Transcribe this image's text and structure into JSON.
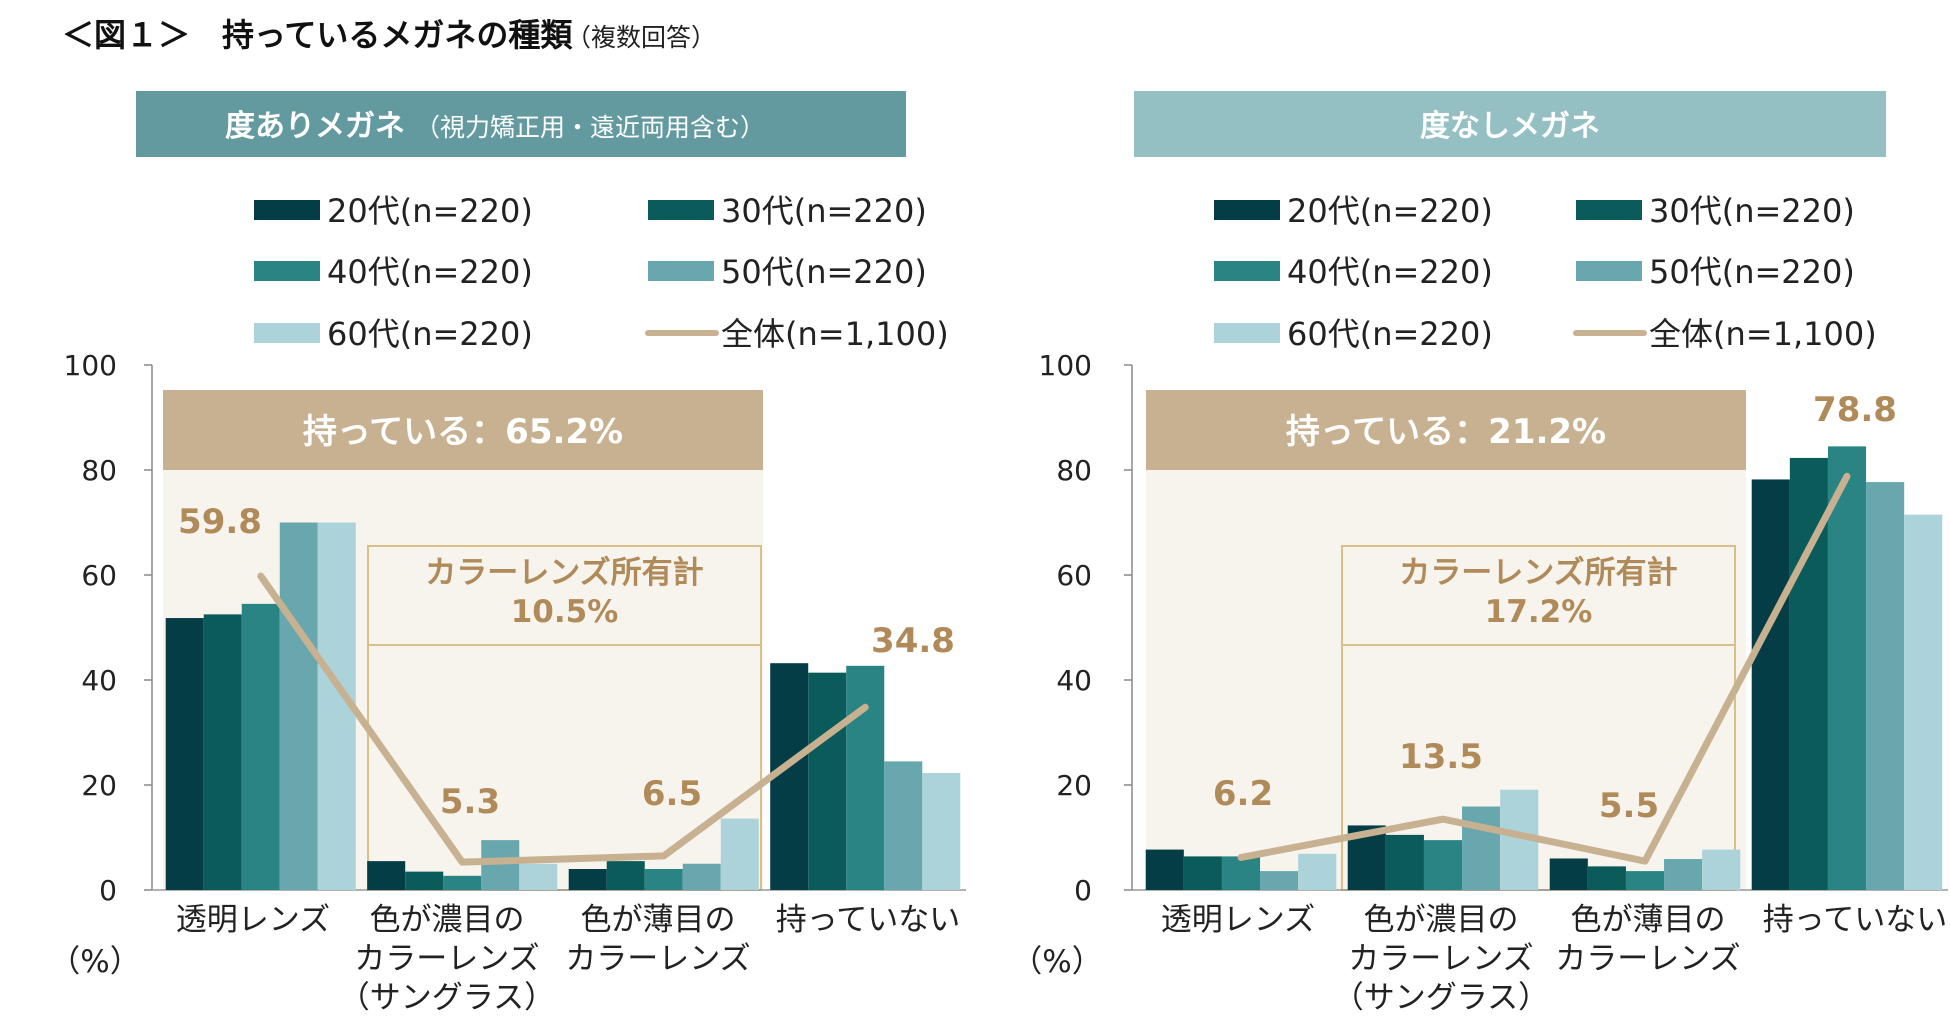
{
  "figure": {
    "title": "＜図１＞　持っているメガネの種類",
    "subtitle": "（複数回答）"
  },
  "colors": {
    "c20": "#053d46",
    "c30": "#0c5b5b",
    "c40": "#2a8484",
    "c50": "#67a7ad",
    "c60": "#acd3da",
    "total": "#c8b190",
    "banner": "#c8b190",
    "highlight": "#f7f4ee",
    "box": "#d8c08b",
    "label": "#b08a58",
    "panel1": "#629aa0",
    "panel2": "#94bfc3"
  },
  "chart_data": [
    {
      "type": "bar",
      "title": "度ありメガネ",
      "subtitle": "（視力矯正用・遠近両用含む）",
      "ylim": [
        0,
        100
      ],
      "yticks": [
        "0",
        "20",
        "40",
        "60",
        "80",
        "100"
      ],
      "ylabel": "（%）",
      "categories": [
        [
          "透明レンズ"
        ],
        [
          "色が濃目の",
          "カラーレンズ",
          "（サングラス）"
        ],
        [
          "色が薄目の",
          "カラーレンズ"
        ],
        [
          "持っていない"
        ]
      ],
      "series": [
        {
          "name": "20代(n=220)",
          "values": [
            51.8,
            5.5,
            4.0,
            43.2
          ]
        },
        {
          "name": "30代(n=220)",
          "values": [
            52.5,
            3.5,
            5.5,
            41.4
          ]
        },
        {
          "name": "40代(n=220)",
          "values": [
            54.5,
            2.7,
            4.0,
            42.7
          ]
        },
        {
          "name": "50代(n=220)",
          "values": [
            70.0,
            9.5,
            5.0,
            24.5
          ]
        },
        {
          "name": "60代(n=220)",
          "values": [
            70.0,
            5.0,
            13.6,
            22.3
          ]
        }
      ],
      "line": {
        "name": "全体(n=1,100)",
        "values": [
          59.8,
          5.3,
          6.5,
          34.8
        ]
      },
      "line_labels": [
        "59.8",
        "5.3",
        "6.5",
        "34.8"
      ],
      "banner": "持っている：65.2%",
      "box": [
        "カラーレンズ所有計",
        "10.5%"
      ]
    },
    {
      "type": "bar",
      "title": "度なしメガネ",
      "ylim": [
        0,
        100
      ],
      "yticks": [
        "0",
        "20",
        "40",
        "60",
        "80",
        "100"
      ],
      "ylabel": "（%）",
      "categories": [
        [
          "透明レンズ"
        ],
        [
          "色が濃目の",
          "カラーレンズ",
          "（サングラス）"
        ],
        [
          "色が薄目の",
          "カラーレンズ"
        ],
        [
          "持っていない"
        ]
      ],
      "series": [
        {
          "name": "20代(n=220)",
          "values": [
            7.7,
            12.3,
            6.0,
            78.2
          ]
        },
        {
          "name": "30代(n=220)",
          "values": [
            6.4,
            10.5,
            4.5,
            82.3
          ]
        },
        {
          "name": "40代(n=220)",
          "values": [
            6.4,
            9.5,
            3.6,
            84.5
          ]
        },
        {
          "name": "50代(n=220)",
          "values": [
            3.6,
            15.9,
            5.9,
            77.7
          ]
        },
        {
          "name": "60代(n=220)",
          "values": [
            6.9,
            19.1,
            7.7,
            71.5
          ]
        }
      ],
      "line": {
        "name": "全体(n=1,100)",
        "values": [
          6.2,
          13.5,
          5.5,
          78.8
        ]
      },
      "line_labels": [
        "6.2",
        "13.5",
        "5.5",
        "78.8"
      ],
      "banner": "持っている：21.2%",
      "box": [
        "カラーレンズ所有計",
        "17.2%"
      ]
    }
  ]
}
